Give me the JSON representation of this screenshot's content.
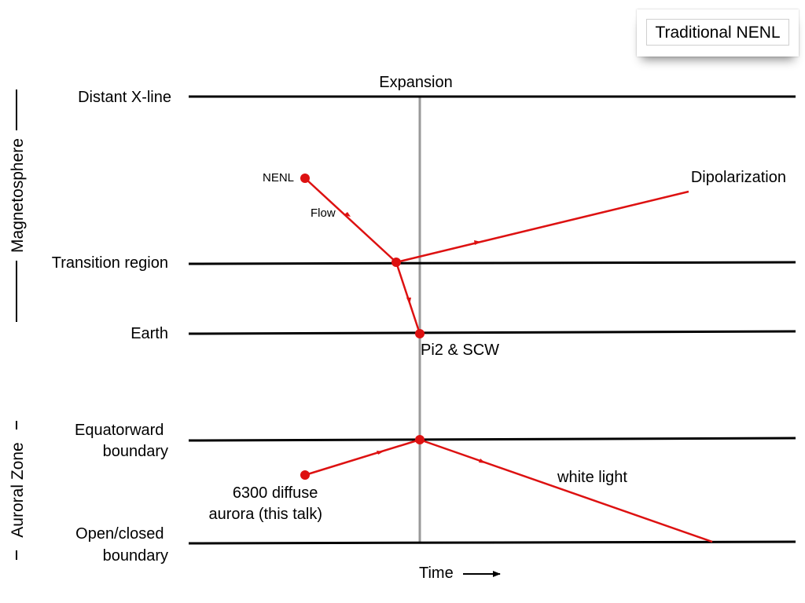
{
  "title_badge": "Traditional NENL",
  "expansion_label": "Expansion",
  "groups": {
    "magnetosphere": "Magnetosphere",
    "auroral_zone": "Auroral Zone"
  },
  "row_labels": {
    "distant_xline": [
      "Distant X-line"
    ],
    "transition_region": [
      "Transition region"
    ],
    "earth": [
      "Earth"
    ],
    "equatorward_boundary": [
      "Equatorward",
      "boundary"
    ],
    "open_closed_boundary": [
      "Open/closed",
      "boundary"
    ]
  },
  "annotations": {
    "nenl": "NENL",
    "flow": "Flow",
    "dipolarization": "Dipolarization",
    "pi2_scw": "Pi2 & SCW",
    "white_light": "white light",
    "diffuse_aurora": [
      "6300 diffuse",
      "aurora (this talk)"
    ]
  },
  "time_label": "Time",
  "colors": {
    "lines": "#000000",
    "expansion_marker": "#999999",
    "event": "#dd1111"
  }
}
